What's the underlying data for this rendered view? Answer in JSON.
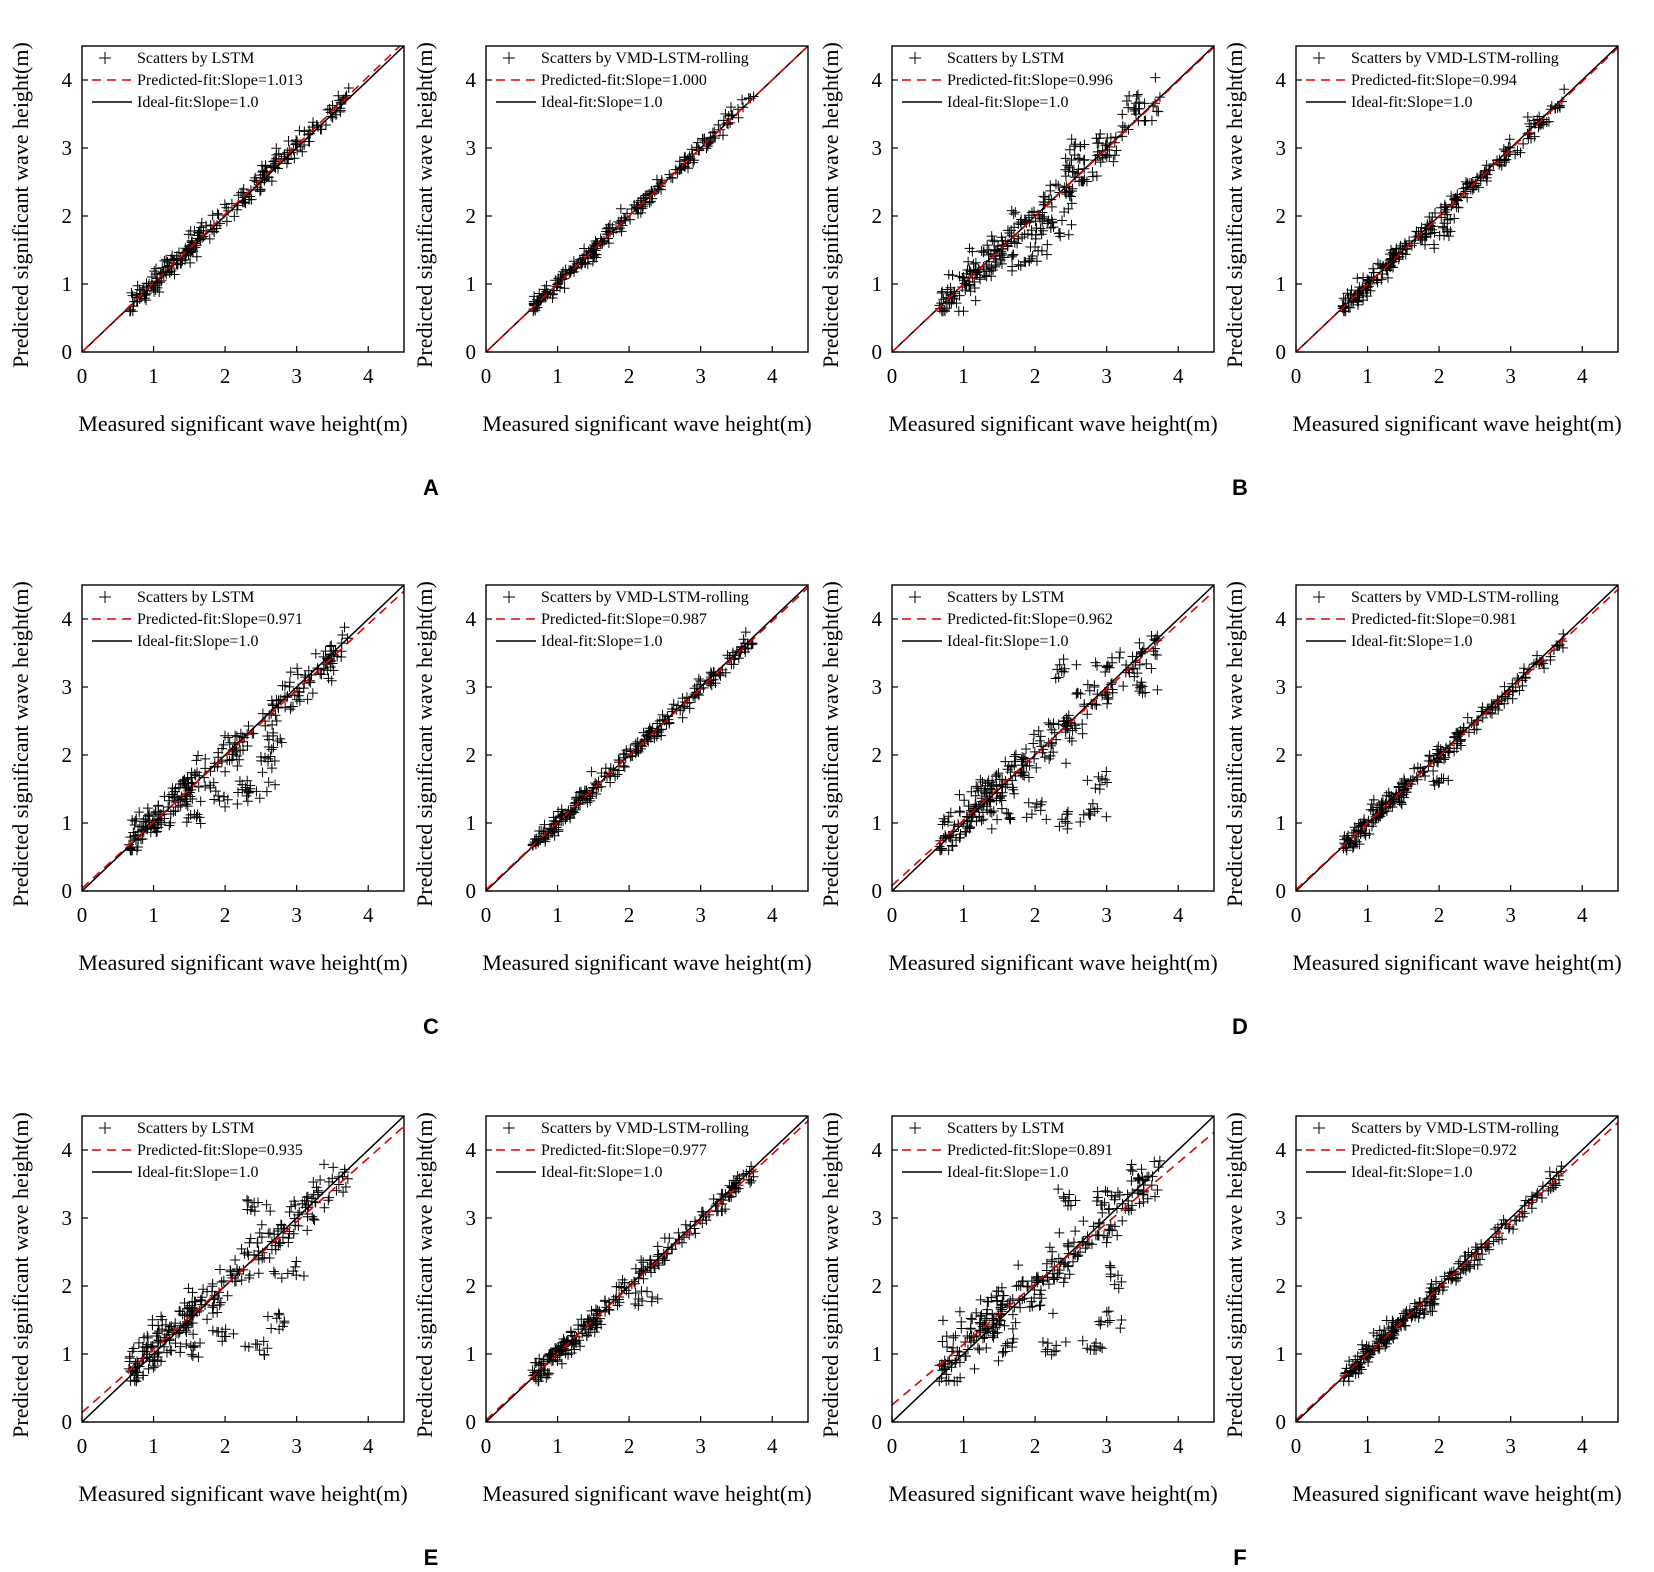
{
  "figure": {
    "panel_letters": [
      "A",
      "B",
      "C",
      "D",
      "E",
      "F"
    ]
  },
  "chart_data": [
    {
      "type": "scatter",
      "panel": "A",
      "xlabel": "Measured significant wave height(m)",
      "ylabel": "Predicted significant wave height(m)",
      "xlim": [
        0,
        4.5
      ],
      "ylim": [
        0,
        4.5
      ],
      "xticks": [
        0,
        1,
        2,
        3,
        4
      ],
      "yticks": [
        0,
        1,
        2,
        3,
        4
      ],
      "legend": [
        "Scatters by LSTM",
        "Predicted-fit:Slope=1.013",
        "Ideal-fit:Slope=1.0"
      ],
      "legend_placement": "top-left",
      "predicted_fit": {
        "slope": 1.013,
        "intercept": 0.0
      },
      "scatter_spread": 0.09,
      "clusters": []
    },
    {
      "type": "scatter",
      "panel": "A",
      "xlabel": "Measured significant wave height(m)",
      "ylabel": "Predicted significant wave height(m)",
      "xlim": [
        0,
        4.5
      ],
      "ylim": [
        0,
        4.5
      ],
      "xticks": [
        0,
        1,
        2,
        3,
        4
      ],
      "yticks": [
        0,
        1,
        2,
        3,
        4
      ],
      "legend": [
        "Scatters by VMD-LSTM-rolling",
        "Predicted-fit:Slope=1.000",
        "Ideal-fit:Slope=1.0"
      ],
      "legend_placement": "top-left",
      "predicted_fit": {
        "slope": 1.0,
        "intercept": 0.0
      },
      "scatter_spread": 0.06,
      "clusters": []
    },
    {
      "type": "scatter",
      "panel": "B",
      "xlabel": "Measured significant wave height(m)",
      "ylabel": "Predicted significant wave height(m)",
      "xlim": [
        0,
        4.5
      ],
      "ylim": [
        0,
        4.5
      ],
      "xticks": [
        0,
        1,
        2,
        3,
        4
      ],
      "yticks": [
        0,
        1,
        2,
        3,
        4
      ],
      "legend": [
        "Scatters by LSTM",
        "Predicted-fit:Slope=0.996",
        "Ideal-fit:Slope=1.0"
      ],
      "legend_placement": "top-left",
      "predicted_fit": {
        "slope": 0.996,
        "intercept": 0.0
      },
      "scatter_spread": 0.16,
      "clusters": [
        [
          1.8,
          1.3
        ],
        [
          2.0,
          1.5
        ],
        [
          2.3,
          1.8
        ],
        [
          2.5,
          2.7
        ],
        [
          2.6,
          3.0
        ],
        [
          3.4,
          3.6
        ]
      ]
    },
    {
      "type": "scatter",
      "panel": "B",
      "xlabel": "Measured significant wave height(m)",
      "ylabel": "Predicted significant wave height(m)",
      "xlim": [
        0,
        4.5
      ],
      "ylim": [
        0,
        4.5
      ],
      "xticks": [
        0,
        1,
        2,
        3,
        4
      ],
      "yticks": [
        0,
        1,
        2,
        3,
        4
      ],
      "legend": [
        "Scatters by VMD-LSTM-rolling",
        "Predicted-fit:Slope=0.994",
        "Ideal-fit:Slope=1.0"
      ],
      "legend_placement": "top-left",
      "predicted_fit": {
        "slope": 0.994,
        "intercept": 0.0
      },
      "scatter_spread": 0.08,
      "clusters": [
        [
          1.9,
          1.7
        ],
        [
          2.1,
          1.8
        ]
      ]
    },
    {
      "type": "scatter",
      "panel": "C",
      "xlabel": "Measured significant wave height(m)",
      "ylabel": "Predicted significant wave height(m)",
      "xlim": [
        0,
        4.5
      ],
      "ylim": [
        0,
        4.5
      ],
      "xticks": [
        0,
        1,
        2,
        3,
        4
      ],
      "yticks": [
        0,
        1,
        2,
        3,
        4
      ],
      "legend": [
        "Scatters by LSTM",
        "Predicted-fit:Slope=0.971",
        "Ideal-fit:Slope=1.0"
      ],
      "legend_placement": "top-left",
      "predicted_fit": {
        "slope": 0.971,
        "intercept": 0.04
      },
      "scatter_spread": 0.15,
      "clusters": [
        [
          1.6,
          1.1
        ],
        [
          2.0,
          1.4
        ],
        [
          2.3,
          1.45
        ],
        [
          2.5,
          1.5
        ],
        [
          2.6,
          1.9
        ],
        [
          2.7,
          2.2
        ],
        [
          3.5,
          3.4
        ]
      ]
    },
    {
      "type": "scatter",
      "panel": "C",
      "xlabel": "Measured significant wave height(m)",
      "ylabel": "Predicted significant wave height(m)",
      "xlim": [
        0,
        4.5
      ],
      "ylim": [
        0,
        4.5
      ],
      "xticks": [
        0,
        1,
        2,
        3,
        4
      ],
      "yticks": [
        0,
        1,
        2,
        3,
        4
      ],
      "legend": [
        "Scatters by VMD-LSTM-rolling",
        "Predicted-fit:Slope=0.987",
        "Ideal-fit:Slope=1.0"
      ],
      "legend_placement": "top-left",
      "predicted_fit": {
        "slope": 0.987,
        "intercept": 0.02
      },
      "scatter_spread": 0.07,
      "clusters": []
    },
    {
      "type": "scatter",
      "panel": "D",
      "xlabel": "Measured significant wave height(m)",
      "ylabel": "Predicted significant wave height(m)",
      "xlim": [
        0,
        4.5
      ],
      "ylim": [
        0,
        4.5
      ],
      "xticks": [
        0,
        1,
        2,
        3,
        4
      ],
      "yticks": [
        0,
        1,
        2,
        3,
        4
      ],
      "legend": [
        "Scatters by LSTM",
        "Predicted-fit:Slope=0.962",
        "Ideal-fit:Slope=1.0"
      ],
      "legend_placement": "top-left",
      "predicted_fit": {
        "slope": 0.962,
        "intercept": 0.08
      },
      "scatter_spread": 0.18,
      "clusters": [
        [
          1.5,
          1.1
        ],
        [
          2.0,
          1.2
        ],
        [
          2.5,
          1.05
        ],
        [
          2.8,
          1.2
        ],
        [
          2.9,
          1.6
        ],
        [
          2.4,
          3.3
        ],
        [
          3.0,
          3.3
        ],
        [
          3.5,
          3.0
        ]
      ]
    },
    {
      "type": "scatter",
      "panel": "D",
      "xlabel": "Measured significant wave height(m)",
      "ylabel": "Predicted significant wave height(m)",
      "xlim": [
        0,
        4.5
      ],
      "ylim": [
        0,
        4.5
      ],
      "xticks": [
        0,
        1,
        2,
        3,
        4
      ],
      "yticks": [
        0,
        1,
        2,
        3,
        4
      ],
      "legend": [
        "Scatters by VMD-LSTM-rolling",
        "Predicted-fit:Slope=0.981",
        "Ideal-fit:Slope=1.0"
      ],
      "legend_placement": "top-left",
      "predicted_fit": {
        "slope": 0.981,
        "intercept": 0.02
      },
      "scatter_spread": 0.08,
      "clusters": [
        [
          2.0,
          1.6
        ]
      ]
    },
    {
      "type": "scatter",
      "panel": "E",
      "xlabel": "Measured significant wave height(m)",
      "ylabel": "Predicted significant wave height(m)",
      "xlim": [
        0,
        4.5
      ],
      "ylim": [
        0,
        4.5
      ],
      "xticks": [
        0,
        1,
        2,
        3,
        4
      ],
      "yticks": [
        0,
        1,
        2,
        3,
        4
      ],
      "legend": [
        "Scatters by LSTM",
        "Predicted-fit:Slope=0.935",
        "Ideal-fit:Slope=1.0"
      ],
      "legend_placement": "top-left",
      "predicted_fit": {
        "slope": 0.935,
        "intercept": 0.14
      },
      "scatter_spread": 0.18,
      "clusters": [
        [
          1.6,
          1.1
        ],
        [
          2.0,
          1.3
        ],
        [
          2.5,
          1.1
        ],
        [
          2.8,
          1.5
        ],
        [
          2.9,
          2.2
        ],
        [
          2.4,
          3.2
        ],
        [
          3.1,
          3.3
        ]
      ]
    },
    {
      "type": "scatter",
      "panel": "E",
      "xlabel": "Measured significant wave height(m)",
      "ylabel": "Predicted significant wave height(m)",
      "xlim": [
        0,
        4.5
      ],
      "ylim": [
        0,
        4.5
      ],
      "xticks": [
        0,
        1,
        2,
        3,
        4
      ],
      "yticks": [
        0,
        1,
        2,
        3,
        4
      ],
      "legend": [
        "Scatters by VMD-LSTM-rolling",
        "Predicted-fit:Slope=0.977",
        "Ideal-fit:Slope=1.0"
      ],
      "legend_placement": "top-left",
      "predicted_fit": {
        "slope": 0.977,
        "intercept": 0.03
      },
      "scatter_spread": 0.09,
      "clusters": [
        [
          2.2,
          1.8
        ]
      ]
    },
    {
      "type": "scatter",
      "panel": "F",
      "xlabel": "Measured significant wave height(m)",
      "ylabel": "Predicted significant wave height(m)",
      "xlim": [
        0,
        4.5
      ],
      "ylim": [
        0,
        4.5
      ],
      "xticks": [
        0,
        1,
        2,
        3,
        4
      ],
      "yticks": [
        0,
        1,
        2,
        3,
        4
      ],
      "legend": [
        "Scatters by LSTM",
        "Predicted-fit:Slope=0.891",
        "Ideal-fit:Slope=1.0"
      ],
      "legend_placement": "top-left",
      "predicted_fit": {
        "slope": 0.891,
        "intercept": 0.25
      },
      "scatter_spread": 0.2,
      "clusters": [
        [
          1.6,
          1.1
        ],
        [
          2.2,
          1.1
        ],
        [
          2.8,
          1.1
        ],
        [
          3.0,
          1.5
        ],
        [
          3.1,
          2.2
        ],
        [
          2.5,
          3.3
        ],
        [
          3.0,
          3.3
        ],
        [
          3.4,
          3.6
        ]
      ]
    },
    {
      "type": "scatter",
      "panel": "F",
      "xlabel": "Measured significant wave height(m)",
      "ylabel": "Predicted significant wave height(m)",
      "xlim": [
        0,
        4.5
      ],
      "ylim": [
        0,
        4.5
      ],
      "xticks": [
        0,
        1,
        2,
        3,
        4
      ],
      "yticks": [
        0,
        1,
        2,
        3,
        4
      ],
      "legend": [
        "Scatters by VMD-LSTM-rolling",
        "Predicted-fit:Slope=0.972",
        "Ideal-fit:Slope=1.0"
      ],
      "legend_placement": "top-left",
      "predicted_fit": {
        "slope": 0.972,
        "intercept": 0.03
      },
      "scatter_spread": 0.08,
      "clusters": [
        [
          1.9,
          1.7
        ]
      ]
    }
  ],
  "colors": {
    "axes": "#000000",
    "scatter": "#000000",
    "predicted_fit": "#e00000",
    "ideal_fit": "#000000"
  }
}
